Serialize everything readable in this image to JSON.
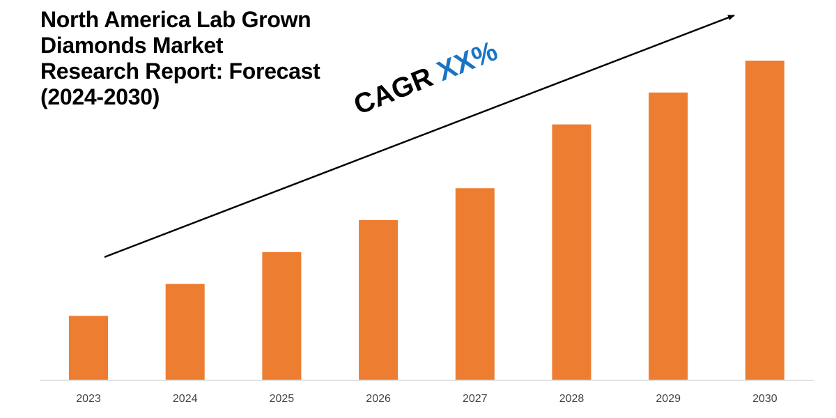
{
  "title_lines": [
    "North America Lab Grown",
    "Diamonds Market",
    "Research Report: Forecast",
    "(2024-2030)"
  ],
  "annotation": {
    "prefix": "CAGR",
    "value": "XX%",
    "prefix_color": "#000000",
    "value_color": "#1a74c4"
  },
  "chart_data": {
    "type": "bar",
    "title": "North America Lab Grown Diamonds Market Research Report: Forecast (2024-2030)",
    "categories": [
      "2023",
      "2024",
      "2025",
      "2026",
      "2027",
      "2028",
      "2029",
      "2030"
    ],
    "values": [
      20,
      30,
      40,
      50,
      60,
      80,
      90,
      100
    ],
    "ylim": [
      0,
      100
    ],
    "xlabel": "",
    "ylabel": "",
    "grid": false,
    "legend": "none",
    "bar_color": "#ed7d31",
    "axis_color": "#d9d9d9",
    "trend_arrow": true
  }
}
